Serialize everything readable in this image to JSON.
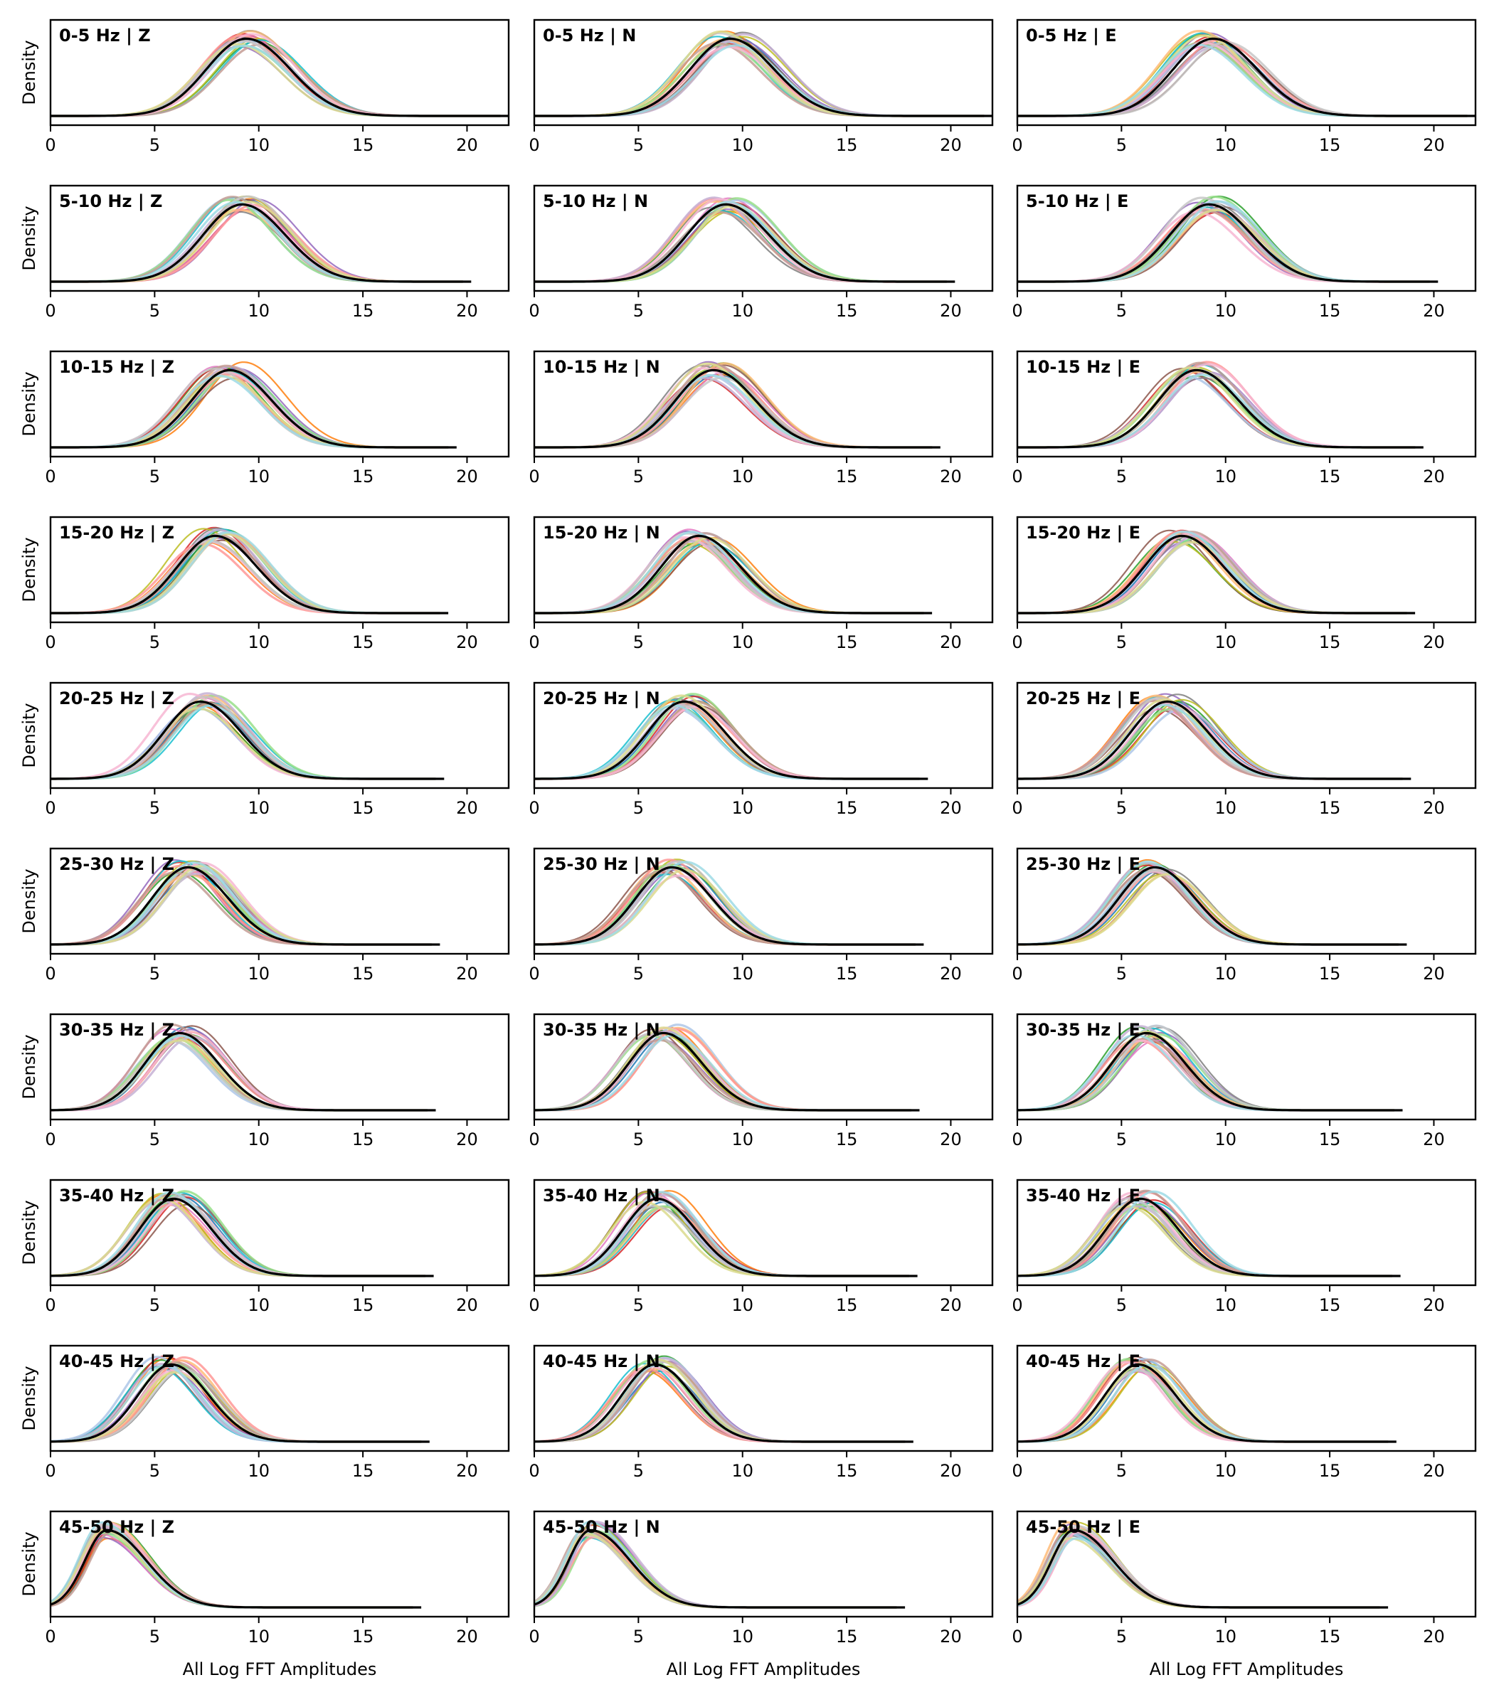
{
  "chart_data": {
    "type": "line",
    "layout": {
      "rows": 10,
      "cols": 3
    },
    "xlim": [
      0,
      22
    ],
    "xticks": [
      0,
      5,
      10,
      15,
      20
    ],
    "ylabel": "Density",
    "xlabel": "All Log FFT Amplitudes",
    "grid": false,
    "components": [
      "Z",
      "N",
      "E"
    ],
    "bands": [
      {
        "label": "0-5 Hz",
        "mode": 9.4,
        "xmax": 22.0
      },
      {
        "label": "5-10 Hz",
        "mode": 9.2,
        "xmax": 20.2
      },
      {
        "label": "10-15 Hz",
        "mode": 8.6,
        "xmax": 19.5
      },
      {
        "label": "15-20 Hz",
        "mode": 7.9,
        "xmax": 19.1
      },
      {
        "label": "20-25 Hz",
        "mode": 7.2,
        "xmax": 18.9
      },
      {
        "label": "25-30 Hz",
        "mode": 6.6,
        "xmax": 18.7
      },
      {
        "label": "30-35 Hz",
        "mode": 6.2,
        "xmax": 18.5
      },
      {
        "label": "35-40 Hz",
        "mode": 5.9,
        "xmax": 18.4
      },
      {
        "label": "40-45 Hz",
        "mode": 5.8,
        "xmax": 18.2
      },
      {
        "label": "45-50 Hz",
        "mode": 2.7,
        "xmax": 17.8
      }
    ],
    "series_colors": [
      "#1f77b4",
      "#ff7f0e",
      "#2ca02c",
      "#d62728",
      "#9467bd",
      "#8c564b",
      "#e377c2",
      "#7f7f7f",
      "#bcbd22",
      "#17becf",
      "#aec7e8",
      "#ffbb78",
      "#98df8a",
      "#ff9896",
      "#c5b0d5",
      "#c49c94",
      "#f7b6d2",
      "#c7c7c7",
      "#dbdb8d",
      "#9edae5"
    ],
    "mean_color": "#000000"
  }
}
